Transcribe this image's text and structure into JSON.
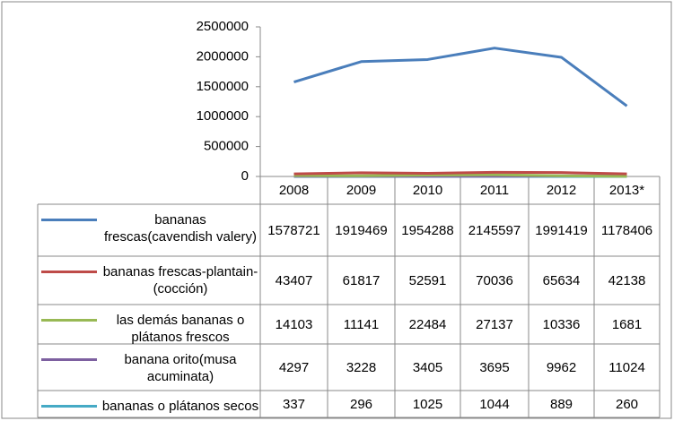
{
  "chart_data": {
    "type": "line",
    "categories": [
      "2008",
      "2009",
      "2010",
      "2011",
      "2012",
      "2013*"
    ],
    "series": [
      {
        "name": "bananas frescas(cavendish valery)",
        "color": "#4a7ebb",
        "values": [
          1578721,
          1919469,
          1954288,
          2145597,
          1991419,
          1178406
        ]
      },
      {
        "name": "bananas frescas-plantain-(cocción)",
        "color": "#be4b48",
        "values": [
          43407,
          61817,
          52591,
          70036,
          65634,
          42138
        ]
      },
      {
        "name": "las demás bananas o plátanos frescos",
        "color": "#98b954",
        "values": [
          14103,
          11141,
          22484,
          27137,
          10336,
          1681
        ]
      },
      {
        "name": "banana orito(musa acuminata)",
        "color": "#7d60a0",
        "values": [
          4297,
          3228,
          3405,
          3695,
          9962,
          11024
        ]
      },
      {
        "name": "bananas o plátanos secos",
        "color": "#46aac5",
        "values": [
          337,
          296,
          1025,
          1044,
          889,
          260
        ]
      }
    ],
    "ylim": [
      0,
      2500000
    ],
    "yticks": [
      0,
      500000,
      1000000,
      1500000,
      2000000,
      2500000
    ],
    "grid": false
  }
}
